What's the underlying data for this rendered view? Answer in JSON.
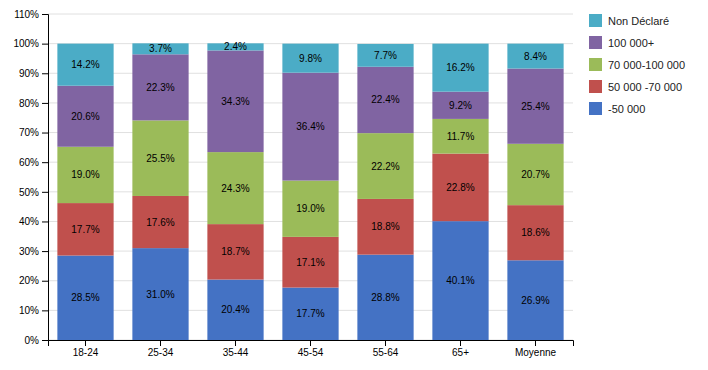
{
  "chart_data": {
    "type": "bar",
    "stacked": true,
    "categories": [
      "18-24",
      "25-34",
      "35-44",
      "45-54",
      "55-64",
      "65+",
      "Moyenne"
    ],
    "series": [
      {
        "name": "-50 000",
        "color": "#4472C4",
        "values": [
          28.5,
          31.0,
          20.4,
          17.7,
          28.8,
          40.1,
          26.9
        ],
        "value_labels": [
          "28.5%",
          "31.0%",
          "20.4%",
          "17.7%",
          "28.8%",
          "40.1%",
          "26.9%"
        ]
      },
      {
        "name": "50 000 -70 000",
        "color": "#C0504D",
        "values": [
          17.7,
          17.6,
          18.7,
          17.1,
          18.8,
          22.8,
          18.6
        ],
        "value_labels": [
          "17.7%",
          "17.6%",
          "18.7%",
          "17.1%",
          "18.8%",
          "22.8%",
          "18.6%"
        ]
      },
      {
        "name": "70 000-100 000",
        "color": "#9BBB59",
        "values": [
          19.0,
          25.5,
          24.3,
          19.0,
          22.2,
          11.7,
          20.7
        ],
        "value_labels": [
          "19.0%",
          "25.5%",
          "24.3%",
          "19.0%",
          "22.2%",
          "11.7%",
          "20.7%"
        ]
      },
      {
        "name": "100 000+",
        "color": "#8064A2",
        "values": [
          20.6,
          22.3,
          34.3,
          36.4,
          22.4,
          9.2,
          25.4
        ],
        "value_labels": [
          "20.6%",
          "22.3%",
          "34.3%",
          "36.4%",
          "22.4%",
          "9.2%",
          "25.4%"
        ]
      },
      {
        "name": "Non Déclaré",
        "color": "#4BACC6",
        "values": [
          14.2,
          3.7,
          2.4,
          9.8,
          7.7,
          16.2,
          8.4
        ],
        "value_labels": [
          "14.2%",
          "3.7%",
          "2.4%",
          "9.8%",
          "7.7%",
          "16.2%",
          "8.4%"
        ]
      }
    ],
    "ylim": [
      0,
      110
    ],
    "yticks": [
      {
        "value": 0,
        "label": "0%"
      },
      {
        "value": 10,
        "label": "10%"
      },
      {
        "value": 20,
        "label": "20%"
      },
      {
        "value": 30,
        "label": "30%"
      },
      {
        "value": 40,
        "label": "40%"
      },
      {
        "value": 50,
        "label": "50%"
      },
      {
        "value": 60,
        "label": "60%"
      },
      {
        "value": 70,
        "label": "70%"
      },
      {
        "value": 80,
        "label": "80%"
      },
      {
        "value": 90,
        "label": "90%"
      },
      {
        "value": 100,
        "label": "100%"
      },
      {
        "value": 110,
        "label": "110%"
      }
    ],
    "grid": true,
    "data_labels": true,
    "legend": "right"
  }
}
